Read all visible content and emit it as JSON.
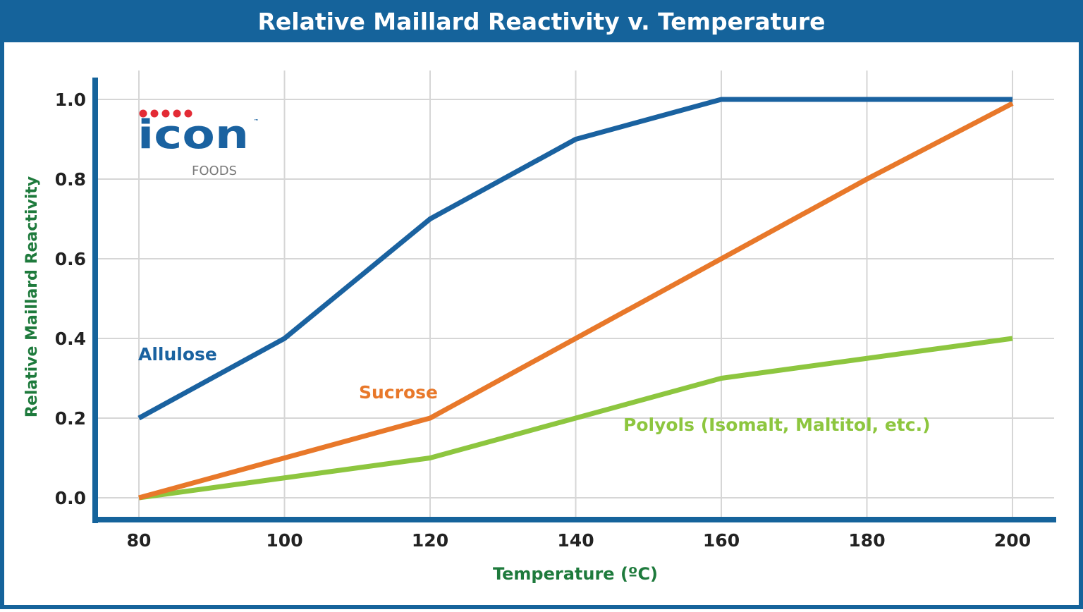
{
  "chart_data": {
    "type": "line",
    "title": "Relative Maillard Reactivity v. Temperature",
    "xlabel": "Temperature (ºC)",
    "ylabel": "Relative Maillard Reactivity",
    "x": [
      80,
      100,
      120,
      140,
      160,
      180,
      200
    ],
    "xticks": [
      "80",
      "100",
      "120",
      "140",
      "160",
      "180",
      "200"
    ],
    "yticks": [
      "0.0",
      "0.2",
      "0.4",
      "0.6",
      "0.8",
      "1.0"
    ],
    "xlim": [
      80,
      200
    ],
    "ylim": [
      0,
      1.0
    ],
    "grid": true,
    "series": [
      {
        "name": "Allulose",
        "color": "#1a62a0",
        "values": [
          0.2,
          0.4,
          0.7,
          0.9,
          1.0,
          1.0,
          1.0
        ]
      },
      {
        "name": "Sucrose",
        "color": "#e8782a",
        "values": [
          0.0,
          0.1,
          0.2,
          0.4,
          0.6,
          0.8,
          0.99
        ]
      },
      {
        "name": "Polyols (Isomalt, Maltitol, etc.)",
        "color": "#8dc63f",
        "values": [
          0.0,
          0.05,
          0.1,
          0.2,
          0.3,
          0.35,
          0.4
        ]
      }
    ]
  },
  "logo": {
    "main": "icon",
    "sub": "FOODS",
    "tm": "™"
  },
  "colors": {
    "frame": "#15639b",
    "axis_title": "#1e7a3c",
    "grid": "#d6d6d6"
  }
}
